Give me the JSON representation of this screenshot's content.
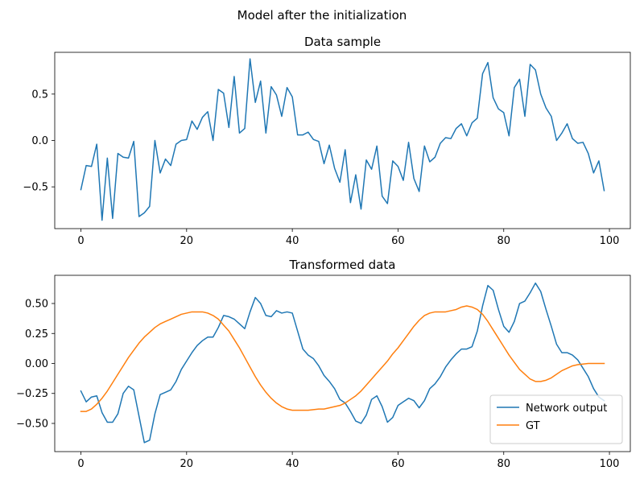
{
  "figure_title": "Model after the initialization",
  "chart_data": [
    {
      "type": "line",
      "title": "Data sample",
      "xlabel": "",
      "ylabel": "",
      "xlim": [
        -4.95,
        103.95
      ],
      "ylim": [
        -0.95,
        0.95
      ],
      "xticks": [
        0,
        20,
        40,
        60,
        80,
        100
      ],
      "yticks": [
        -0.5,
        0.0,
        0.5
      ],
      "grid": false,
      "series": [
        {
          "color": "#1f77b4",
          "x": [
            0,
            1,
            2,
            3,
            4,
            5,
            6,
            7,
            8,
            9,
            10,
            11,
            12,
            13,
            14,
            15,
            16,
            17,
            18,
            19,
            20,
            21,
            22,
            23,
            24,
            25,
            26,
            27,
            28,
            29,
            30,
            31,
            32,
            33,
            34,
            35,
            36,
            37,
            38,
            39,
            40,
            41,
            42,
            43,
            44,
            45,
            46,
            47,
            48,
            49,
            50,
            51,
            52,
            53,
            54,
            55,
            56,
            57,
            58,
            59,
            60,
            61,
            62,
            63,
            64,
            65,
            66,
            67,
            68,
            69,
            70,
            71,
            72,
            73,
            74,
            75,
            76,
            77,
            78,
            79,
            80,
            81,
            82,
            83,
            84,
            85,
            86,
            87,
            88,
            89,
            90,
            91,
            92,
            93,
            94,
            95,
            96,
            97,
            98,
            99
          ],
          "values": [
            -0.53,
            -0.27,
            -0.28,
            -0.04,
            -0.86,
            -0.19,
            -0.84,
            -0.14,
            -0.18,
            -0.19,
            -0.01,
            -0.82,
            -0.78,
            -0.71,
            0.0,
            -0.35,
            -0.2,
            -0.27,
            -0.04,
            0.0,
            0.01,
            0.21,
            0.12,
            0.25,
            0.31,
            0.0,
            0.55,
            0.51,
            0.14,
            0.69,
            0.08,
            0.13,
            0.88,
            0.41,
            0.64,
            0.08,
            0.58,
            0.49,
            0.26,
            0.57,
            0.47,
            0.06,
            0.06,
            0.09,
            0.01,
            -0.01,
            -0.25,
            -0.05,
            -0.3,
            -0.45,
            -0.1,
            -0.67,
            -0.37,
            -0.74,
            -0.21,
            -0.31,
            -0.06,
            -0.6,
            -0.68,
            -0.22,
            -0.28,
            -0.43,
            -0.02,
            -0.41,
            -0.55,
            -0.06,
            -0.23,
            -0.18,
            -0.03,
            0.03,
            0.02,
            0.13,
            0.18,
            0.05,
            0.19,
            0.24,
            0.72,
            0.84,
            0.46,
            0.34,
            0.3,
            0.05,
            0.57,
            0.66,
            0.26,
            0.82,
            0.76,
            0.5,
            0.35,
            0.26,
            0.0,
            0.08,
            0.18,
            0.02,
            -0.03,
            -0.02,
            -0.14,
            -0.35,
            -0.22,
            -0.54
          ]
        }
      ]
    },
    {
      "type": "line",
      "title": "Transformed data",
      "xlabel": "",
      "ylabel": "",
      "xlim": [
        -4.95,
        103.95
      ],
      "ylim": [
        -0.735,
        0.735
      ],
      "xticks": [
        0,
        20,
        40,
        60,
        80,
        100
      ],
      "yticks": [
        -0.5,
        -0.25,
        0.0,
        0.25,
        0.5
      ],
      "ytick_labels": [
        "−0.50",
        "−0.25",
        "0.00",
        "0.25",
        "0.50"
      ],
      "grid": false,
      "legend_position": "lower-right",
      "series": [
        {
          "name": "Network output",
          "color": "#1f77b4",
          "x": [
            0,
            1,
            2,
            3,
            4,
            5,
            6,
            7,
            8,
            9,
            10,
            11,
            12,
            13,
            14,
            15,
            16,
            17,
            18,
            19,
            20,
            21,
            22,
            23,
            24,
            25,
            26,
            27,
            28,
            29,
            30,
            31,
            32,
            33,
            34,
            35,
            36,
            37,
            38,
            39,
            40,
            41,
            42,
            43,
            44,
            45,
            46,
            47,
            48,
            49,
            50,
            51,
            52,
            53,
            54,
            55,
            56,
            57,
            58,
            59,
            60,
            61,
            62,
            63,
            64,
            65,
            66,
            67,
            68,
            69,
            70,
            71,
            72,
            73,
            74,
            75,
            76,
            77,
            78,
            79,
            80,
            81,
            82,
            83,
            84,
            85,
            86,
            87,
            88,
            89,
            90,
            91,
            92,
            93,
            94,
            95,
            96,
            97,
            98,
            99
          ],
          "values": [
            -0.23,
            -0.32,
            -0.28,
            -0.27,
            -0.41,
            -0.49,
            -0.49,
            -0.42,
            -0.25,
            -0.19,
            -0.22,
            -0.44,
            -0.66,
            -0.64,
            -0.42,
            -0.26,
            -0.24,
            -0.22,
            -0.15,
            -0.05,
            0.02,
            0.09,
            0.15,
            0.19,
            0.22,
            0.22,
            0.3,
            0.4,
            0.39,
            0.37,
            0.33,
            0.29,
            0.43,
            0.55,
            0.5,
            0.4,
            0.39,
            0.44,
            0.42,
            0.43,
            0.42,
            0.27,
            0.12,
            0.07,
            0.04,
            -0.02,
            -0.1,
            -0.15,
            -0.21,
            -0.3,
            -0.33,
            -0.4,
            -0.48,
            -0.5,
            -0.43,
            -0.3,
            -0.27,
            -0.36,
            -0.49,
            -0.45,
            -0.35,
            -0.32,
            -0.29,
            -0.31,
            -0.37,
            -0.31,
            -0.21,
            -0.17,
            -0.11,
            -0.03,
            0.03,
            0.08,
            0.12,
            0.12,
            0.14,
            0.27,
            0.48,
            0.65,
            0.61,
            0.45,
            0.31,
            0.26,
            0.35,
            0.5,
            0.52,
            0.59,
            0.67,
            0.6,
            0.45,
            0.31,
            0.16,
            0.09,
            0.09,
            0.07,
            0.03,
            -0.04,
            -0.11,
            -0.21,
            -0.28,
            -0.31
          ]
        },
        {
          "name": "GT",
          "color": "#ff7f0e",
          "x": [
            0,
            1,
            2,
            3,
            4,
            5,
            6,
            7,
            8,
            9,
            10,
            11,
            12,
            13,
            14,
            15,
            16,
            17,
            18,
            19,
            20,
            21,
            22,
            23,
            24,
            25,
            26,
            27,
            28,
            29,
            30,
            31,
            32,
            33,
            34,
            35,
            36,
            37,
            38,
            39,
            40,
            41,
            42,
            43,
            44,
            45,
            46,
            47,
            48,
            49,
            50,
            51,
            52,
            53,
            54,
            55,
            56,
            57,
            58,
            59,
            60,
            61,
            62,
            63,
            64,
            65,
            66,
            67,
            68,
            69,
            70,
            71,
            72,
            73,
            74,
            75,
            76,
            77,
            78,
            79,
            80,
            81,
            82,
            83,
            84,
            85,
            86,
            87,
            88,
            89,
            90,
            91,
            92,
            93,
            94,
            95,
            96,
            97,
            98,
            99
          ],
          "values": [
            -0.4,
            -0.4,
            -0.38,
            -0.34,
            -0.29,
            -0.23,
            -0.16,
            -0.09,
            -0.02,
            0.05,
            0.11,
            0.17,
            0.22,
            0.26,
            0.3,
            0.33,
            0.35,
            0.37,
            0.39,
            0.41,
            0.42,
            0.43,
            0.43,
            0.43,
            0.42,
            0.4,
            0.37,
            0.32,
            0.27,
            0.2,
            0.13,
            0.05,
            -0.03,
            -0.11,
            -0.18,
            -0.24,
            -0.29,
            -0.33,
            -0.36,
            -0.38,
            -0.39,
            -0.39,
            -0.39,
            -0.39,
            -0.385,
            -0.38,
            -0.38,
            -0.37,
            -0.36,
            -0.35,
            -0.33,
            -0.3,
            -0.27,
            -0.23,
            -0.18,
            -0.13,
            -0.08,
            -0.03,
            0.02,
            0.08,
            0.13,
            0.19,
            0.25,
            0.31,
            0.36,
            0.4,
            0.42,
            0.43,
            0.43,
            0.43,
            0.44,
            0.45,
            0.47,
            0.48,
            0.47,
            0.45,
            0.41,
            0.35,
            0.28,
            0.21,
            0.14,
            0.07,
            0.01,
            -0.05,
            -0.09,
            -0.13,
            -0.15,
            -0.15,
            -0.14,
            -0.12,
            -0.09,
            -0.06,
            -0.04,
            -0.02,
            -0.01,
            -0.005,
            0.0,
            0.0,
            0.0,
            0.0
          ]
        }
      ]
    }
  ]
}
